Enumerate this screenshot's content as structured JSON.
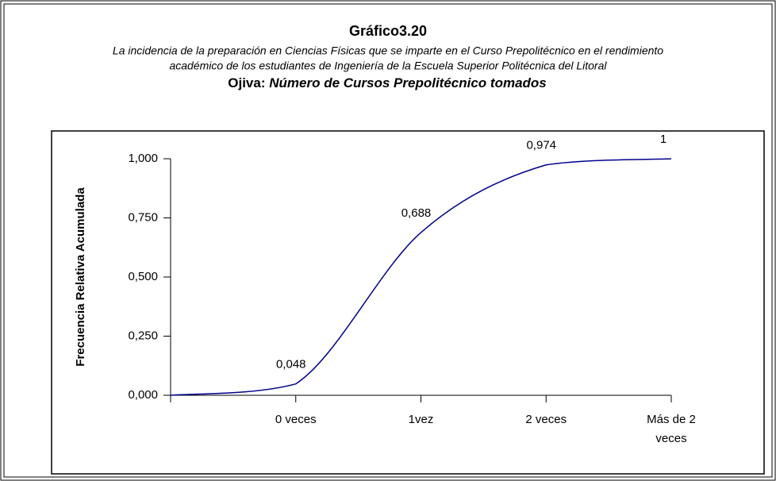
{
  "chart_data": {
    "type": "line",
    "title": "Gráfico3.20",
    "subtitle": [
      "La incidencia de la preparación en Ciencias Físicas que se imparte en el Curso Prepolitécnico en   el rendimiento",
      "académico de los estudiantes de Ingeniería de la Escuela Superior Politécnica del Litoral"
    ],
    "heading_prefix": "Ojiva:",
    "heading": "Número de Cursos  Prepolitécnico tomados",
    "y_label": "Frecuencia Relativa Acumulada",
    "categories": [
      null,
      "0 veces",
      "1vez",
      "2 veces",
      "Más de 2 veces"
    ],
    "values": [
      0,
      0.048,
      0.688,
      0.974,
      1
    ],
    "value_labels": [
      null,
      "0,048",
      "0,688",
      "0,974",
      "1"
    ],
    "color": "#00008b",
    "ylim": [
      0,
      1
    ],
    "yticks": [
      {
        "value": 0,
        "label": "0,000"
      },
      {
        "value": 0.25,
        "label": "0,250"
      },
      {
        "value": 0.5,
        "label": "0,500"
      },
      {
        "value": 0.75,
        "label": "0,750"
      },
      {
        "value": 1,
        "label": "1,000"
      }
    ]
  }
}
